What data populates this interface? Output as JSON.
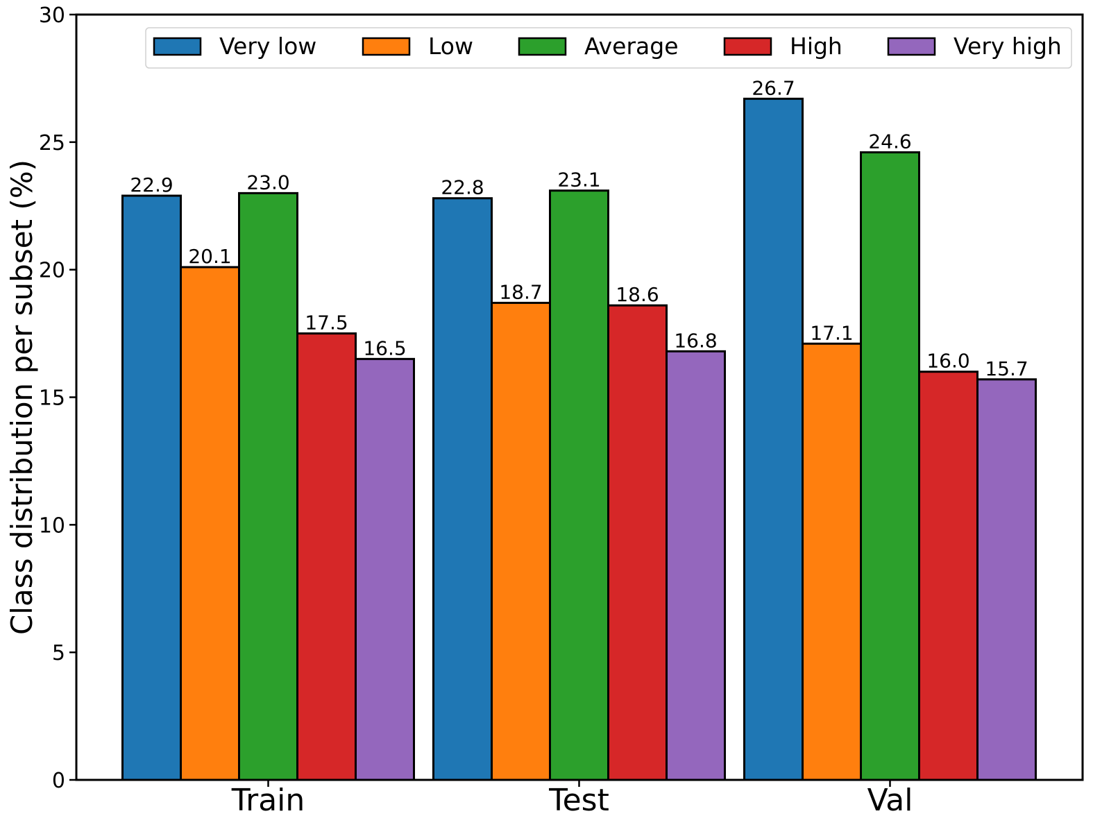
{
  "chart_data": {
    "type": "bar",
    "title": "",
    "xlabel": "",
    "ylabel": "Class distribution per subset (%)",
    "categories": [
      "Train",
      "Test",
      "Val"
    ],
    "ylim": [
      0,
      30
    ],
    "yticks": [
      "0",
      "5",
      "10",
      "15",
      "20",
      "25",
      "30"
    ],
    "grid": false,
    "legend_position": "top-right",
    "series": [
      {
        "name": "Very low",
        "color": "#1f77b4",
        "values": [
          22.9,
          22.8,
          26.7
        ],
        "labels": [
          "22.9",
          "22.8",
          "26.7"
        ]
      },
      {
        "name": "Low",
        "color": "#ff7f0e",
        "values": [
          20.1,
          18.7,
          17.1
        ],
        "labels": [
          "20.1",
          "18.7",
          "17.1"
        ]
      },
      {
        "name": "Average",
        "color": "#2ca02c",
        "values": [
          23.0,
          23.1,
          24.6
        ],
        "labels": [
          "23.0",
          "23.1",
          "24.6"
        ]
      },
      {
        "name": "High",
        "color": "#d62728",
        "values": [
          17.5,
          18.6,
          16.0
        ],
        "labels": [
          "17.5",
          "18.6",
          "16.0"
        ]
      },
      {
        "name": "Very high",
        "color": "#9467bd",
        "values": [
          16.5,
          16.8,
          15.7
        ],
        "labels": [
          "16.5",
          "16.8",
          "15.7"
        ]
      }
    ]
  }
}
